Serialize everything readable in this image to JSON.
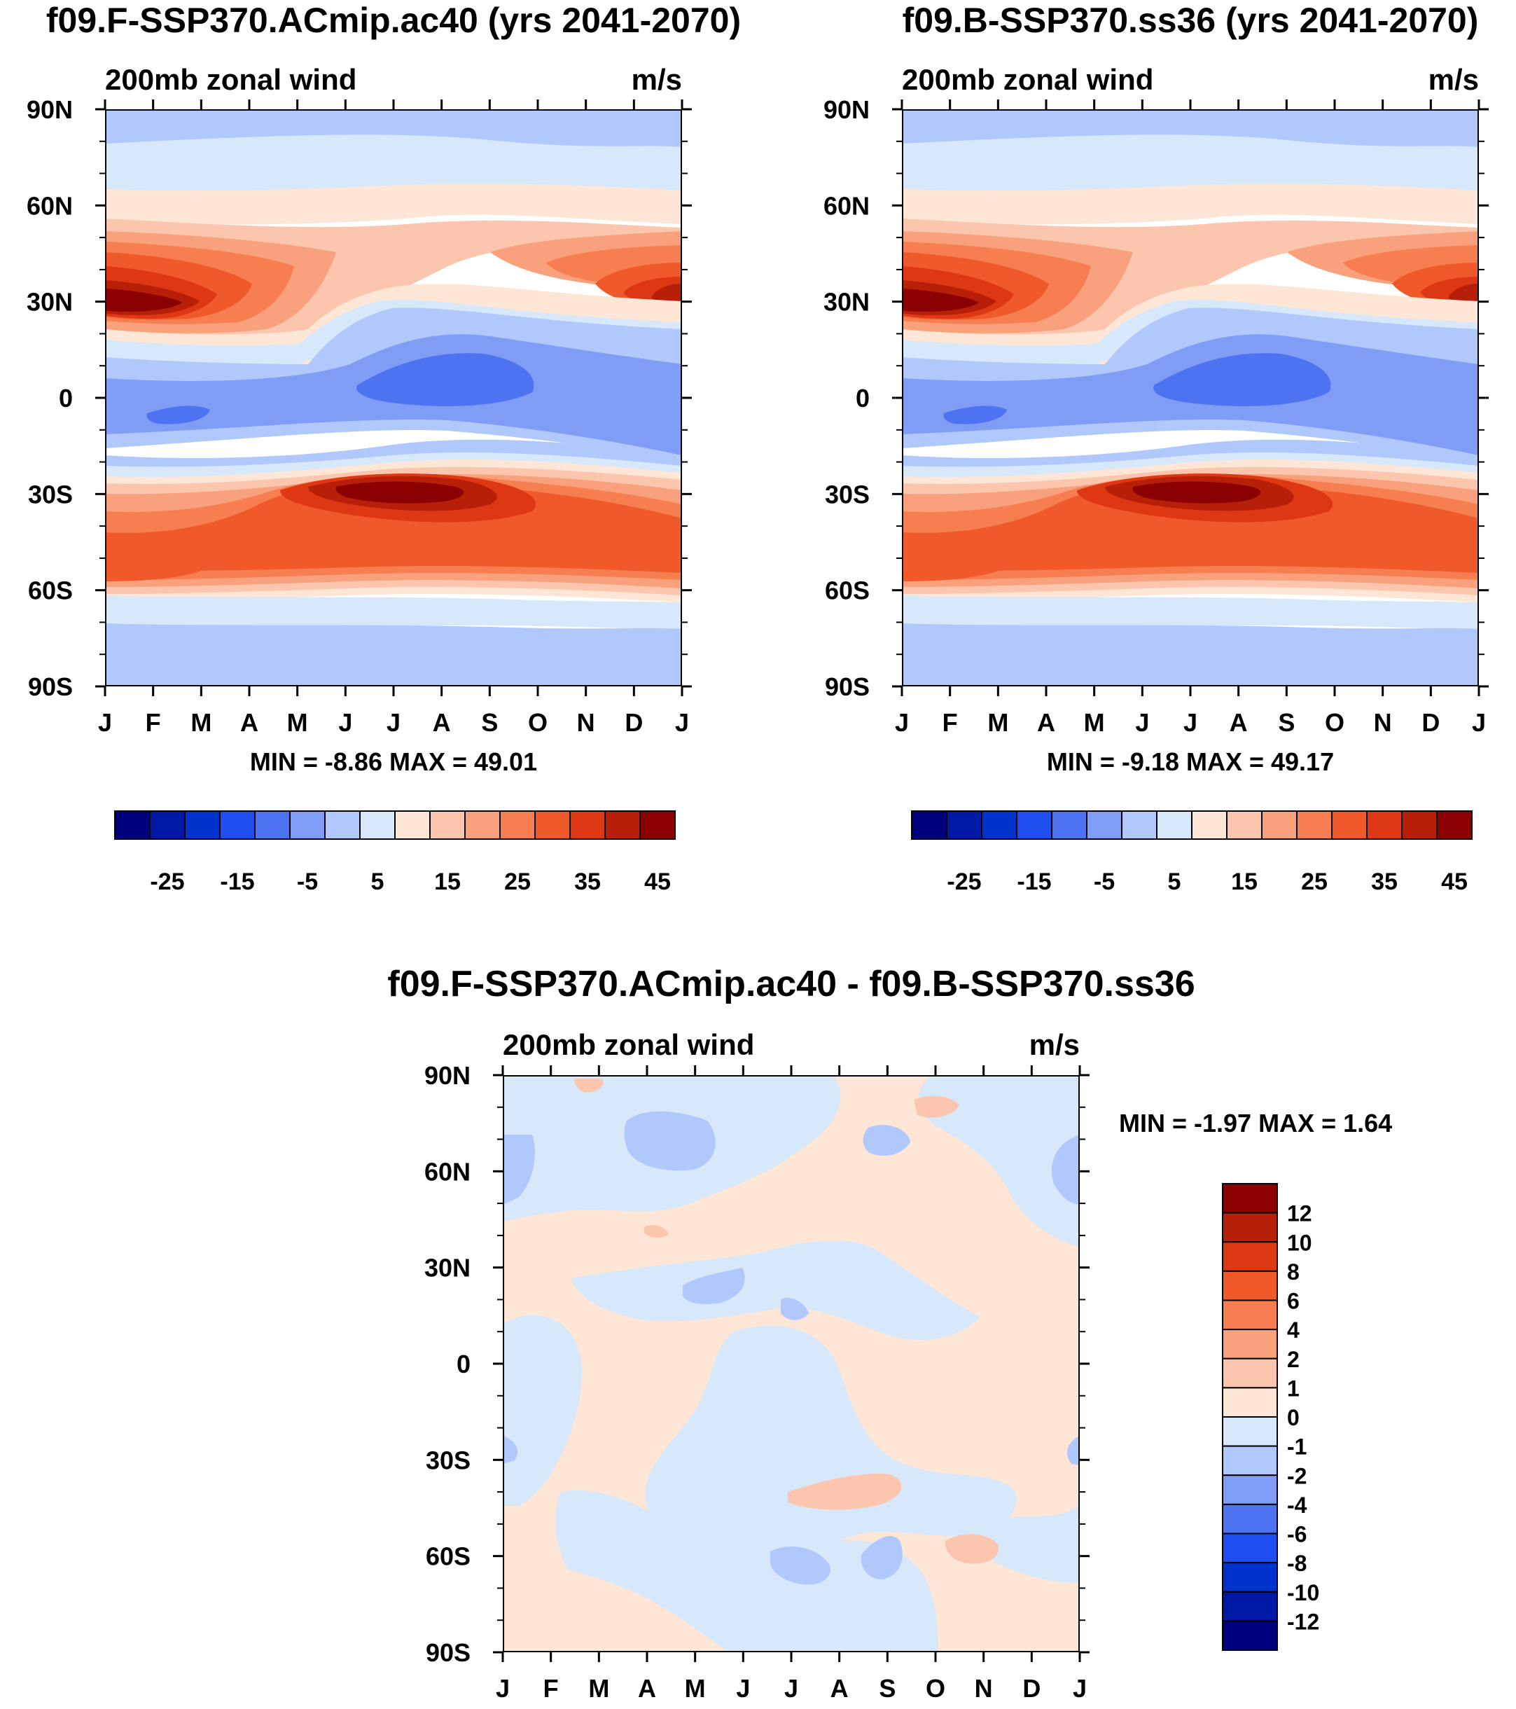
{
  "chart_data": [
    {
      "type": "heatmap",
      "title": "f09.F-SSP370.ACmip.ac40 (yrs 2041-2070)",
      "subtitle": "200mb zonal wind",
      "units": "m/s",
      "x_ticks": [
        "J",
        "F",
        "M",
        "A",
        "M",
        "J",
        "J",
        "A",
        "S",
        "O",
        "N",
        "D",
        "J"
      ],
      "y_ticks": [
        "90N",
        "60N",
        "30N",
        "0",
        "30S",
        "60S",
        "90S"
      ],
      "stats": "MIN =  -8.86 MAX =  49.01",
      "colorbar_labels": [
        "-25",
        "-15",
        "-5",
        "5",
        "15",
        "25",
        "35",
        "45"
      ],
      "levels": [
        -30,
        -25,
        -20,
        -15,
        -10,
        -5,
        0,
        5,
        10,
        15,
        20,
        25,
        30,
        35,
        40,
        45
      ],
      "month_peaks": [
        {
          "month": "J",
          "nh_jet_lat": 30,
          "nh_jet": 46,
          "sh_jet_lat": -45,
          "sh_jet": 32,
          "eq": -2
        },
        {
          "month": "F",
          "nh_jet_lat": 30,
          "nh_jet": 48,
          "sh_jet_lat": -48,
          "sh_jet": 33,
          "eq": -5
        },
        {
          "month": "M",
          "nh_jet_lat": 30,
          "nh_jet": 44,
          "sh_jet_lat": -50,
          "sh_jet": 34,
          "eq": -8
        },
        {
          "month": "A",
          "nh_jet_lat": 32,
          "nh_jet": 38,
          "sh_jet_lat": -45,
          "sh_jet": 34,
          "eq": -4
        },
        {
          "month": "M",
          "nh_jet_lat": 38,
          "nh_jet": 30,
          "sh_jet_lat": -35,
          "sh_jet": 38,
          "eq": -3
        },
        {
          "month": "J",
          "nh_jet_lat": 42,
          "nh_jet": 25,
          "sh_jet_lat": -30,
          "sh_jet": 45,
          "eq": -6
        },
        {
          "month": "J",
          "nh_jet_lat": 42,
          "nh_jet": 24,
          "sh_jet_lat": -30,
          "sh_jet": 49,
          "eq": -8
        },
        {
          "month": "A",
          "nh_jet_lat": 42,
          "nh_jet": 26,
          "sh_jet_lat": -32,
          "sh_jet": 45,
          "eq": -8
        },
        {
          "month": "S",
          "nh_jet_lat": 42,
          "nh_jet": 30,
          "sh_jet_lat": -35,
          "sh_jet": 40,
          "eq": -5
        },
        {
          "month": "O",
          "nh_jet_lat": 40,
          "nh_jet": 35,
          "sh_jet_lat": -40,
          "sh_jet": 37,
          "eq": -3
        },
        {
          "month": "N",
          "nh_jet_lat": 35,
          "nh_jet": 38,
          "sh_jet_lat": -45,
          "sh_jet": 35,
          "eq": -2
        },
        {
          "month": "D",
          "nh_jet_lat": 32,
          "nh_jet": 42,
          "sh_jet_lat": -45,
          "sh_jet": 33,
          "eq": -2
        },
        {
          "month": "J",
          "nh_jet_lat": 30,
          "nh_jet": 46,
          "sh_jet_lat": -45,
          "sh_jet": 32,
          "eq": -2
        }
      ]
    },
    {
      "type": "heatmap",
      "title": "f09.B-SSP370.ss36 (yrs 2041-2070)",
      "subtitle": "200mb zonal wind",
      "units": "m/s",
      "x_ticks": [
        "J",
        "F",
        "M",
        "A",
        "M",
        "J",
        "J",
        "A",
        "S",
        "O",
        "N",
        "D",
        "J"
      ],
      "y_ticks": [
        "90N",
        "60N",
        "30N",
        "0",
        "30S",
        "60S",
        "90S"
      ],
      "stats": "MIN =  -9.18 MAX =  49.17",
      "colorbar_labels": [
        "-25",
        "-15",
        "-5",
        "5",
        "15",
        "25",
        "35",
        "45"
      ],
      "levels": [
        -30,
        -25,
        -20,
        -15,
        -10,
        -5,
        0,
        5,
        10,
        15,
        20,
        25,
        30,
        35,
        40,
        45
      ],
      "month_peaks": "same structure as the left panel"
    },
    {
      "type": "heatmap",
      "title": "f09.F-SSP370.ACmip.ac40 - f09.B-SSP370.ss36",
      "subtitle": "200mb zonal wind",
      "units": "m/s",
      "x_ticks": [
        "J",
        "F",
        "M",
        "A",
        "M",
        "J",
        "J",
        "A",
        "S",
        "O",
        "N",
        "D",
        "J"
      ],
      "y_ticks": [
        "90N",
        "60N",
        "30N",
        "0",
        "30S",
        "60S",
        "90S"
      ],
      "stats": "MIN =  -1.97 MAX =   1.64",
      "colorbar_labels": [
        "12",
        "10",
        "8",
        "6",
        "4",
        "2",
        "1",
        "0",
        "-1",
        "-2",
        "-4",
        "-6",
        "-8",
        "-10",
        "-12"
      ],
      "levels": [
        -12,
        -10,
        -8,
        -6,
        -4,
        -2,
        -1,
        0,
        1,
        2,
        4,
        6,
        8,
        10,
        12
      ]
    }
  ],
  "colors": {
    "wind_fill": [
      "#00007f",
      "#0019a5",
      "#0033cc",
      "#1f4ef0",
      "#4d73f0",
      "#7f9df5",
      "#b0c8fb",
      "#d7e8fb",
      "#fde6d6",
      "#fbc6ad",
      "#f9a07c",
      "#f77e51",
      "#f05a2a",
      "#dd3813",
      "#b71f08",
      "#8b0000"
    ],
    "diff_fill": [
      "#00007f",
      "#0019a5",
      "#0033cc",
      "#1f4ef0",
      "#4d73f0",
      "#7f9df5",
      "#b0c8fb",
      "#d7e8fb",
      "#fde6d6",
      "#fbc6ad",
      "#f9a07c",
      "#f77e51",
      "#f05a2a",
      "#dd3813",
      "#b71f08",
      "#8b0000"
    ],
    "frame": "#000000"
  }
}
